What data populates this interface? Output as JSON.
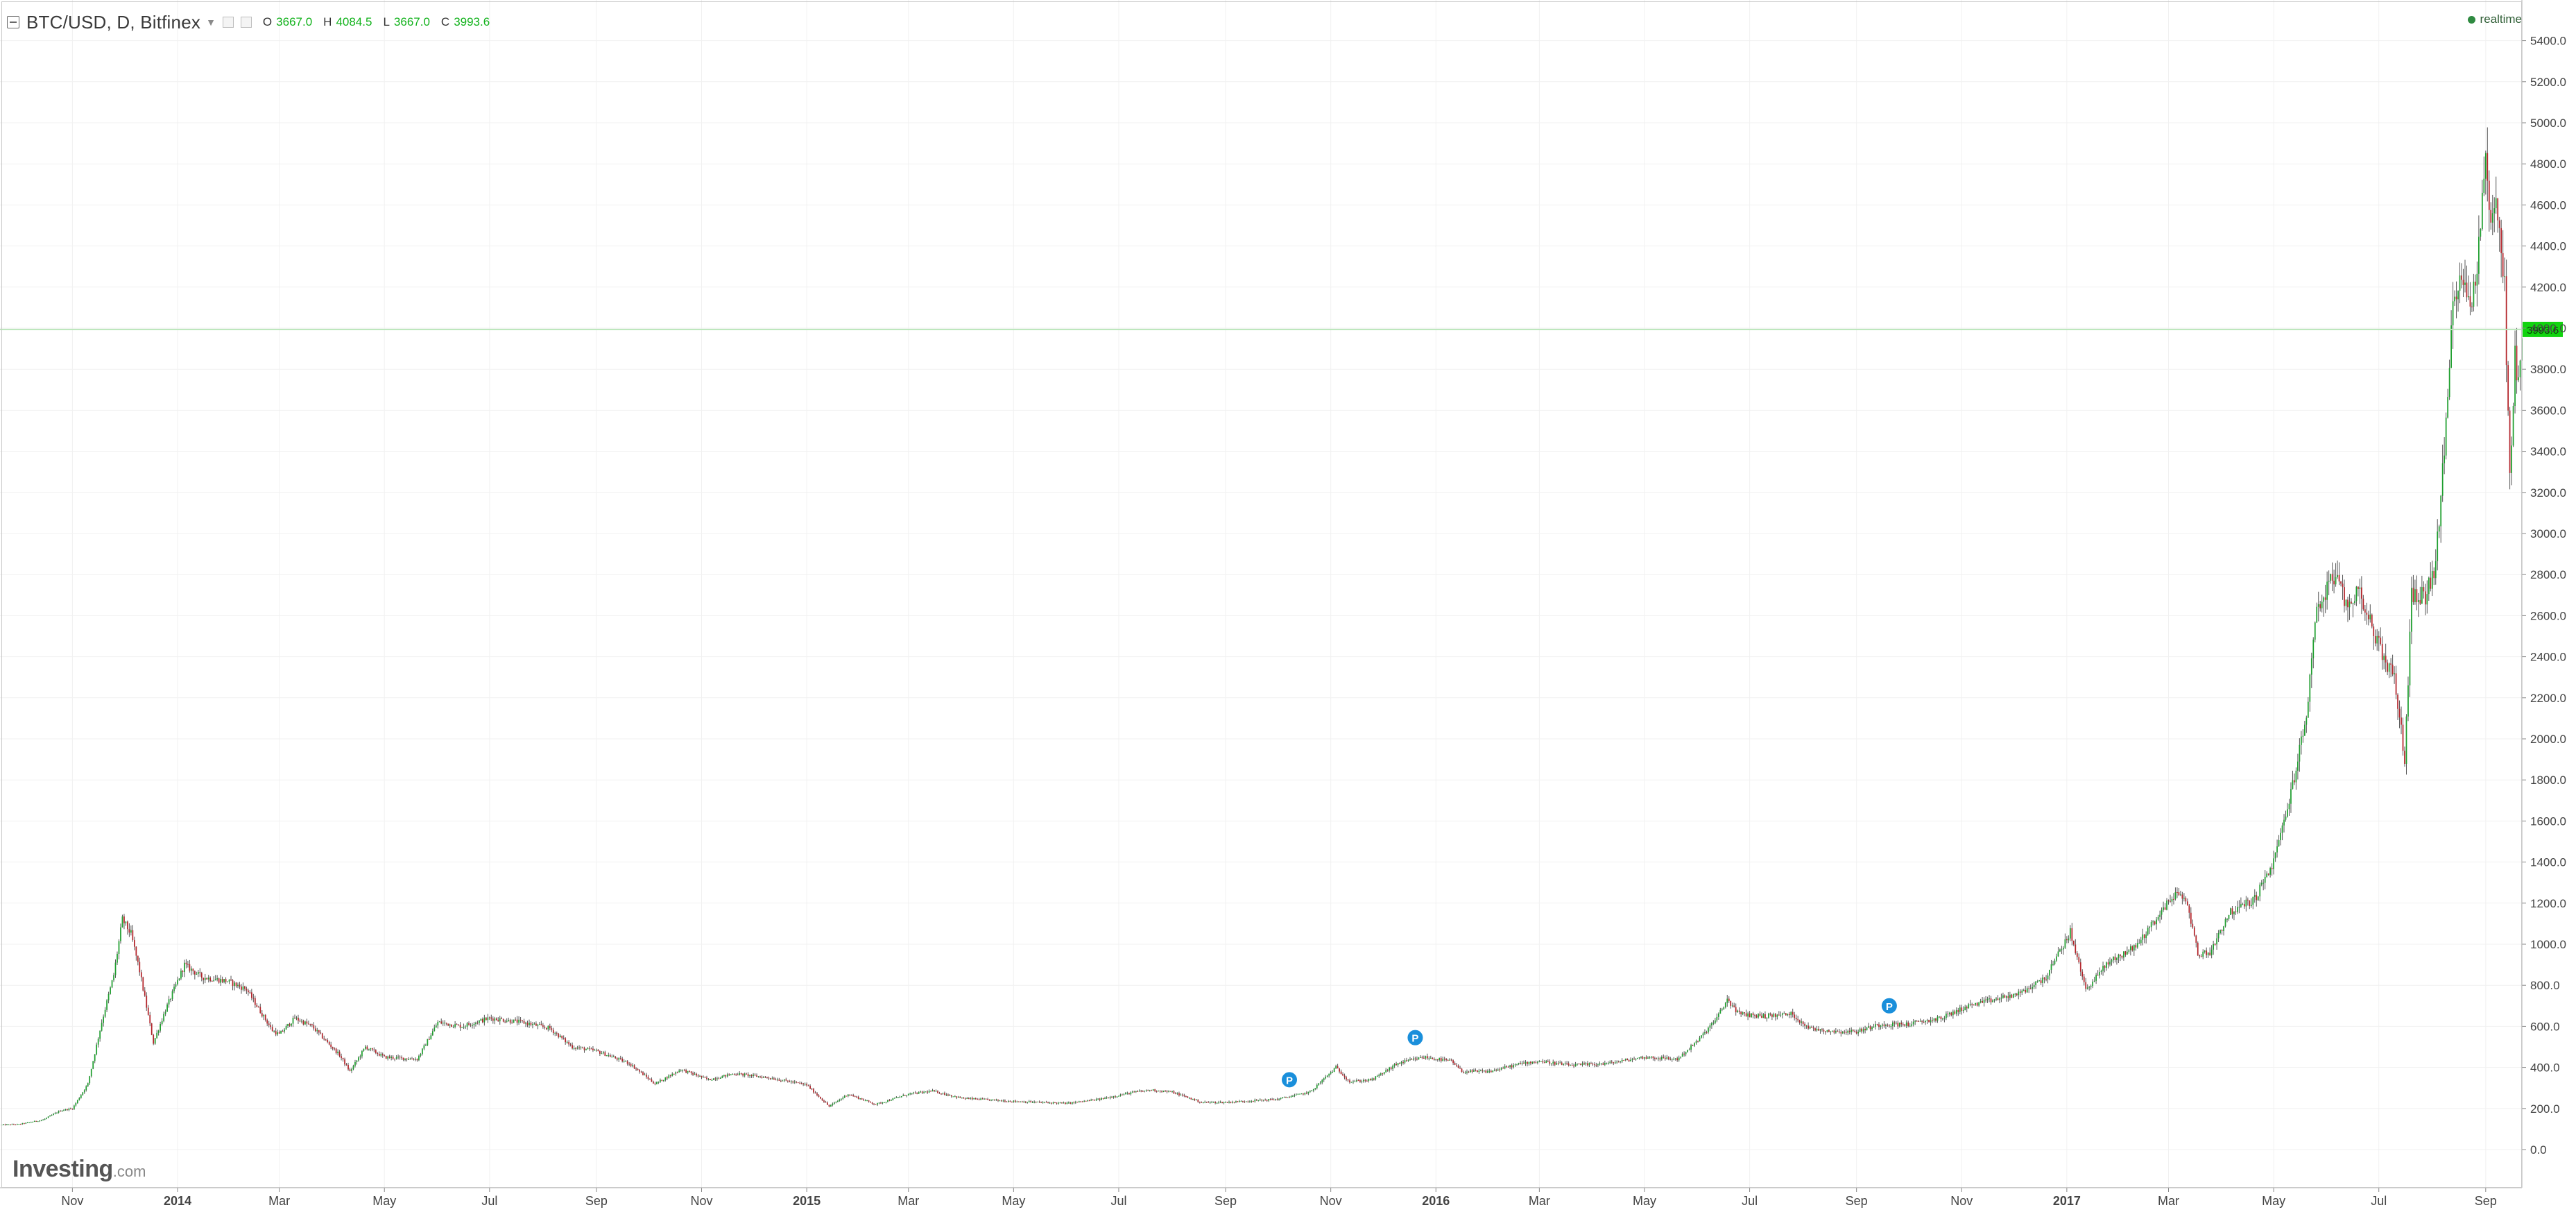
{
  "header": {
    "symbol": "BTC/USD, D, Bitfinex",
    "ohlc": [
      {
        "label": "O",
        "value": "3667.0"
      },
      {
        "label": "H",
        "value": "4084.5"
      },
      {
        "label": "L",
        "value": "3667.0"
      },
      {
        "label": "C",
        "value": "3993.6"
      }
    ],
    "realtime_label": "realtime"
  },
  "logo": {
    "main": "Investing",
    "suffix": ".com"
  },
  "colors": {
    "up": "#1e9e2e",
    "down": "#b3242a",
    "wick": "#555555",
    "price_line": "#b9e6b9",
    "price_tag_bg": "#11d40f",
    "marker": "#1a8fdb",
    "grid": "#f1f1f1",
    "axis_text": "#444444"
  },
  "chart_data": {
    "type": "candlestick",
    "title": "BTC/USD, D, Bitfinex",
    "x_range": [
      "2013-09-20",
      "2017-09-22"
    ],
    "ylim": [
      -100,
      5450
    ],
    "grid": true,
    "y_ticks": [
      0.0,
      200.0,
      400.0,
      600.0,
      800.0,
      1000.0,
      1200.0,
      1400.0,
      1600.0,
      1800.0,
      2000.0,
      2200.0,
      2400.0,
      2600.0,
      2800.0,
      3000.0,
      3200.0,
      3400.0,
      3600.0,
      3800.0,
      4000.0,
      4200.0,
      4400.0,
      4600.0,
      4800.0,
      5000.0,
      5200.0,
      5400.0
    ],
    "y_tick_labels": [
      "0.0",
      "200.0",
      "400.0",
      "600.0",
      "800.0",
      "1000.0",
      "1200.0",
      "1400.0",
      "1600.0",
      "1800.0",
      "2000.0",
      "2200.0",
      "2400.0",
      "2600.0",
      "2800.0",
      "3000.0",
      "3200.0",
      "3400.0",
      "3600.0",
      "3800.0",
      "4000.0",
      "4200.0",
      "4400.0",
      "4600.0",
      "4800.0",
      "5000.0",
      "5200.0",
      "5400.0"
    ],
    "x_ticks": [
      {
        "date": "2013-11-01",
        "label": "Nov",
        "bold": false
      },
      {
        "date": "2014-01-01",
        "label": "2014",
        "bold": true
      },
      {
        "date": "2014-03-01",
        "label": "Mar",
        "bold": false
      },
      {
        "date": "2014-05-01",
        "label": "May",
        "bold": false
      },
      {
        "date": "2014-07-01",
        "label": "Jul",
        "bold": false
      },
      {
        "date": "2014-09-01",
        "label": "Sep",
        "bold": false
      },
      {
        "date": "2014-11-01",
        "label": "Nov",
        "bold": false
      },
      {
        "date": "2015-01-01",
        "label": "2015",
        "bold": true
      },
      {
        "date": "2015-03-01",
        "label": "Mar",
        "bold": false
      },
      {
        "date": "2015-05-01",
        "label": "May",
        "bold": false
      },
      {
        "date": "2015-07-01",
        "label": "Jul",
        "bold": false
      },
      {
        "date": "2015-09-01",
        "label": "Sep",
        "bold": false
      },
      {
        "date": "2015-11-01",
        "label": "Nov",
        "bold": false
      },
      {
        "date": "2016-01-01",
        "label": "2016",
        "bold": true
      },
      {
        "date": "2016-03-01",
        "label": "Mar",
        "bold": false
      },
      {
        "date": "2016-05-01",
        "label": "May",
        "bold": false
      },
      {
        "date": "2016-07-01",
        "label": "Jul",
        "bold": false
      },
      {
        "date": "2016-09-01",
        "label": "Sep",
        "bold": false
      },
      {
        "date": "2016-11-01",
        "label": "Nov",
        "bold": false
      },
      {
        "date": "2017-01-01",
        "label": "2017",
        "bold": true
      },
      {
        "date": "2017-03-01",
        "label": "Mar",
        "bold": false
      },
      {
        "date": "2017-05-01",
        "label": "May",
        "bold": false
      },
      {
        "date": "2017-07-01",
        "label": "Jul",
        "bold": false
      },
      {
        "date": "2017-09-01",
        "label": "Sep",
        "bold": false
      }
    ],
    "current_price": 3993.6,
    "current_price_label": "3993.6",
    "markers": [
      {
        "date": "2015-10-08",
        "value": 340,
        "label": "P"
      },
      {
        "date": "2015-12-20",
        "value": 545,
        "label": "P"
      },
      {
        "date": "2016-09-20",
        "value": 700,
        "label": "P"
      }
    ],
    "series": [
      {
        "price_path": [
          [
            "2013-09-20",
            120
          ],
          [
            "2013-10-01",
            123
          ],
          [
            "2013-10-15",
            145
          ],
          [
            "2013-10-25",
            190
          ],
          [
            "2013-11-01",
            200
          ],
          [
            "2013-11-10",
            320
          ],
          [
            "2013-11-18",
            620
          ],
          [
            "2013-11-25",
            850
          ],
          [
            "2013-11-30",
            1120
          ],
          [
            "2013-12-05",
            1050
          ],
          [
            "2013-12-10",
            870
          ],
          [
            "2013-12-18",
            520
          ],
          [
            "2013-12-25",
            680
          ],
          [
            "2014-01-05",
            900
          ],
          [
            "2014-01-15",
            840
          ],
          [
            "2014-01-30",
            820
          ],
          [
            "2014-02-10",
            780
          ],
          [
            "2014-02-25",
            580
          ],
          [
            "2014-03-01",
            560
          ],
          [
            "2014-03-10",
            640
          ],
          [
            "2014-03-20",
            600
          ],
          [
            "2014-04-05",
            460
          ],
          [
            "2014-04-11",
            380
          ],
          [
            "2014-04-20",
            500
          ],
          [
            "2014-05-01",
            450
          ],
          [
            "2014-05-20",
            440
          ],
          [
            "2014-06-01",
            620
          ],
          [
            "2014-06-15",
            600
          ],
          [
            "2014-07-01",
            640
          ],
          [
            "2014-07-20",
            620
          ],
          [
            "2014-08-05",
            590
          ],
          [
            "2014-08-18",
            500
          ],
          [
            "2014-09-01",
            480
          ],
          [
            "2014-09-20",
            420
          ],
          [
            "2014-10-05",
            320
          ],
          [
            "2014-10-20",
            390
          ],
          [
            "2014-11-05",
            340
          ],
          [
            "2014-11-20",
            370
          ],
          [
            "2014-12-10",
            350
          ],
          [
            "2015-01-01",
            315
          ],
          [
            "2015-01-14",
            210
          ],
          [
            "2015-01-25",
            270
          ],
          [
            "2015-02-10",
            220
          ],
          [
            "2015-03-01",
            270
          ],
          [
            "2015-03-15",
            285
          ],
          [
            "2015-04-01",
            250
          ],
          [
            "2015-05-01",
            235
          ],
          [
            "2015-06-01",
            225
          ],
          [
            "2015-06-20",
            245
          ],
          [
            "2015-07-10",
            280
          ],
          [
            "2015-07-20",
            290
          ],
          [
            "2015-08-01",
            280
          ],
          [
            "2015-08-18",
            230
          ],
          [
            "2015-09-01",
            230
          ],
          [
            "2015-10-01",
            245
          ],
          [
            "2015-10-20",
            280
          ],
          [
            "2015-11-04",
            400
          ],
          [
            "2015-11-12",
            330
          ],
          [
            "2015-11-25",
            340
          ],
          [
            "2015-12-10",
            420
          ],
          [
            "2015-12-25",
            450
          ],
          [
            "2016-01-10",
            430
          ],
          [
            "2016-01-16",
            380
          ],
          [
            "2016-02-01",
            380
          ],
          [
            "2016-02-20",
            420
          ],
          [
            "2016-03-01",
            430
          ],
          [
            "2016-03-20",
            410
          ],
          [
            "2016-04-10",
            420
          ],
          [
            "2016-05-01",
            450
          ],
          [
            "2016-05-20",
            440
          ],
          [
            "2016-06-01",
            530
          ],
          [
            "2016-06-12",
            640
          ],
          [
            "2016-06-18",
            730
          ],
          [
            "2016-06-25",
            660
          ],
          [
            "2016-07-10",
            650
          ],
          [
            "2016-07-25",
            660
          ],
          [
            "2016-08-05",
            590
          ],
          [
            "2016-08-20",
            575
          ],
          [
            "2016-09-01",
            575
          ],
          [
            "2016-09-15",
            610
          ],
          [
            "2016-10-01",
            610
          ],
          [
            "2016-10-20",
            640
          ],
          [
            "2016-11-05",
            700
          ],
          [
            "2016-11-20",
            730
          ],
          [
            "2016-12-05",
            760
          ],
          [
            "2016-12-20",
            840
          ],
          [
            "2017-01-03",
            1060
          ],
          [
            "2017-01-08",
            900
          ],
          [
            "2017-01-12",
            780
          ],
          [
            "2017-01-25",
            910
          ],
          [
            "2017-02-10",
            990
          ],
          [
            "2017-02-25",
            1160
          ],
          [
            "2017-03-05",
            1250
          ],
          [
            "2017-03-12",
            1200
          ],
          [
            "2017-03-18",
            950
          ],
          [
            "2017-03-25",
            960
          ],
          [
            "2017-04-05",
            1150
          ],
          [
            "2017-04-20",
            1220
          ],
          [
            "2017-05-01",
            1400
          ],
          [
            "2017-05-10",
            1700
          ],
          [
            "2017-05-20",
            2100
          ],
          [
            "2017-05-25",
            2600
          ],
          [
            "2017-06-05",
            2800
          ],
          [
            "2017-06-12",
            2650
          ],
          [
            "2017-06-20",
            2720
          ],
          [
            "2017-07-01",
            2450
          ],
          [
            "2017-07-10",
            2300
          ],
          [
            "2017-07-16",
            1900
          ],
          [
            "2017-07-20",
            2700
          ],
          [
            "2017-07-28",
            2700
          ],
          [
            "2017-08-03",
            2850
          ],
          [
            "2017-08-08",
            3400
          ],
          [
            "2017-08-13",
            4100
          ],
          [
            "2017-08-17",
            4300
          ],
          [
            "2017-08-23",
            4100
          ],
          [
            "2017-08-28",
            4400
          ],
          [
            "2017-09-01",
            4850
          ],
          [
            "2017-09-04",
            4500
          ],
          [
            "2017-09-08",
            4600
          ],
          [
            "2017-09-12",
            4200
          ],
          [
            "2017-09-15",
            3250
          ],
          [
            "2017-09-18",
            3900
          ],
          [
            "2017-09-20",
            3700
          ],
          [
            "2017-09-22",
            3990
          ]
        ]
      }
    ]
  }
}
